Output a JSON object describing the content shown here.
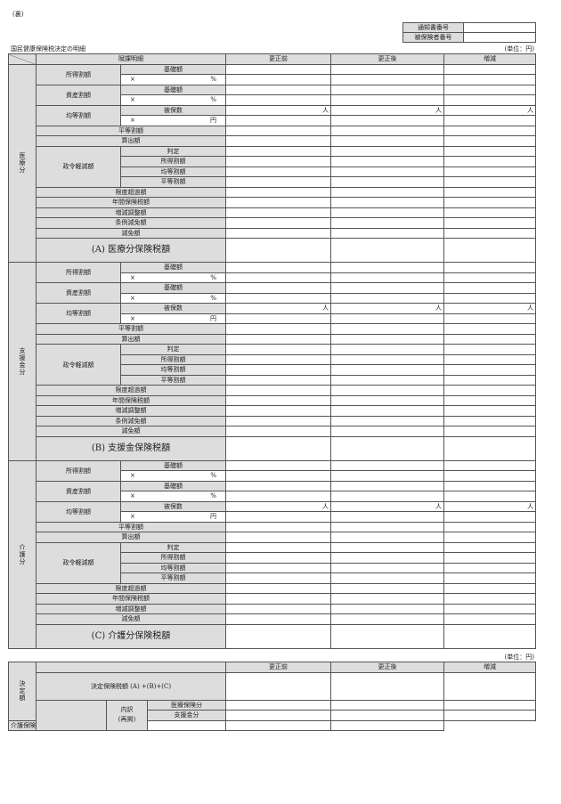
{
  "side_label": "(裏)",
  "number_box": {
    "notice_no_label": "通知書番号",
    "notice_no_value": "",
    "insured_no_label": "被保険者番号",
    "insured_no_value": ""
  },
  "title": "国民健康保険税決定の明細",
  "unit_note": "(単位：円)",
  "header": {
    "detail": "賦課明細",
    "before": "更正前",
    "after": "更正後",
    "change": "増減"
  },
  "person_unit": "人",
  "sections": [
    {
      "label": "医療分",
      "groups": [
        {
          "label": "所得割額",
          "base": "基礎額",
          "rate_prefix": "×",
          "rate_unit": "%"
        },
        {
          "label": "資産割額",
          "base": "基礎額",
          "rate_prefix": "×",
          "rate_unit": "%"
        },
        {
          "label": "均等割額",
          "base": "被保数",
          "rate_prefix": "×",
          "rate_unit": "円"
        }
      ],
      "flat": [
        "平等割額",
        "算出額"
      ],
      "reduction": {
        "label": "政令軽減額",
        "items": [
          "判定",
          "所得割額",
          "均等割額",
          "平等割額"
        ]
      },
      "tail": [
        "限度超過額",
        "年間保険税額",
        "増減調整額",
        "条例減免額",
        "減免額"
      ],
      "total": "(A) 医療分保険税額"
    },
    {
      "label": "支援金分",
      "groups": [
        {
          "label": "所得割額",
          "base": "基礎額",
          "rate_prefix": "×",
          "rate_unit": "%"
        },
        {
          "label": "資産割額",
          "base": "基礎額",
          "rate_prefix": "×",
          "rate_unit": "%"
        },
        {
          "label": "均等割額",
          "base": "被保数",
          "rate_prefix": "×",
          "rate_unit": "円"
        }
      ],
      "flat": [
        "平等割額",
        "算出額"
      ],
      "reduction": {
        "label": "政令軽減額",
        "items": [
          "判定",
          "所得割額",
          "均等割額",
          "平等割額"
        ]
      },
      "tail": [
        "限度超過額",
        "年間保険税額",
        "増減調整額",
        "条例減免額",
        "減免額"
      ],
      "total": "(B) 支援金保険税額"
    },
    {
      "label": "介護分",
      "groups": [
        {
          "label": "所得割額",
          "base": "基礎額",
          "rate_prefix": "×",
          "rate_unit": "%"
        },
        {
          "label": "資産割額",
          "base": "基礎額",
          "rate_prefix": "×",
          "rate_unit": "%"
        },
        {
          "label": "均等割額",
          "base": "被保数",
          "rate_prefix": "×",
          "rate_unit": "円"
        }
      ],
      "flat": [
        "平等割額",
        "算出額"
      ],
      "reduction": {
        "label": "政令軽減額",
        "items": [
          "判定",
          "所得割額",
          "均等割額",
          "平等割額"
        ]
      },
      "tail": [
        "限度超過額",
        "年間保険税額",
        "増減調整額",
        "減免額"
      ],
      "total": "(C) 介護分保険税額"
    }
  ],
  "decision": {
    "label": "決定額",
    "total": "決定保険税額 (A) +(B)+(C)",
    "breakdown_label": "内訳\n(再掲)",
    "breakdown_items": [
      "医療保険分",
      "支援金分",
      "介護保険分"
    ]
  }
}
